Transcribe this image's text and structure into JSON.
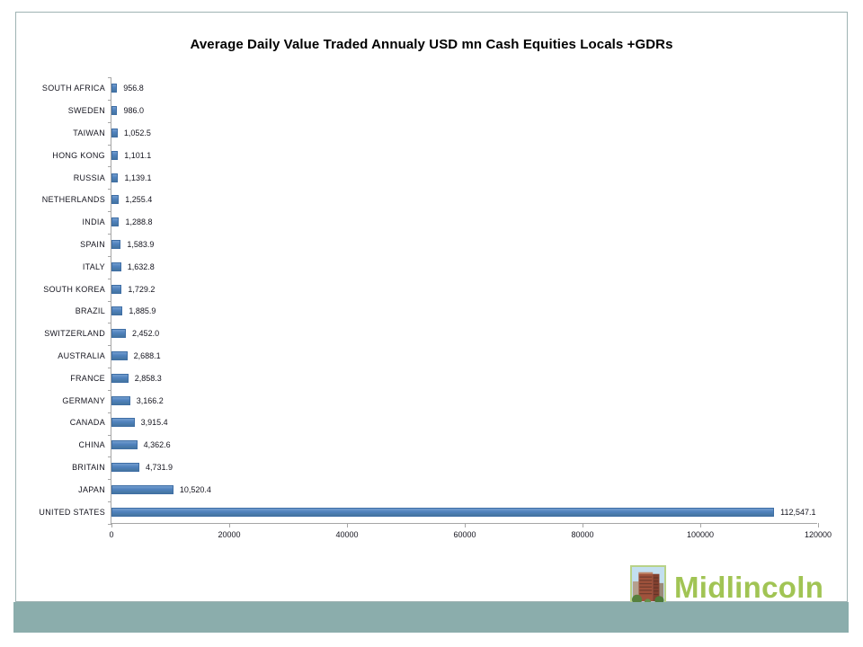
{
  "slide": {
    "title": "Average Daily Value Traded Annualy USD mn Cash Equities Locals +GDRs"
  },
  "chart_data": {
    "type": "bar",
    "orientation": "horizontal",
    "title": "Average Daily Value Traded Annualy USD mn Cash Equities Locals +GDRs",
    "categories": [
      "SOUTH AFRICA",
      "SWEDEN",
      "TAIWAN",
      "HONG KONG",
      "RUSSIA",
      "NETHERLANDS",
      "INDIA",
      "SPAIN",
      "ITALY",
      "SOUTH KOREA",
      "BRAZIL",
      "SWITZERLAND",
      "AUSTRALIA",
      "FRANCE",
      "GERMANY",
      "CANADA",
      "CHINA",
      "BRITAIN",
      "JAPAN",
      "UNITED STATES"
    ],
    "values": [
      956.8,
      986.0,
      1052.5,
      1101.1,
      1139.1,
      1255.4,
      1288.8,
      1583.9,
      1632.8,
      1729.2,
      1885.9,
      2452.0,
      2688.1,
      2858.3,
      3166.2,
      3915.4,
      4362.6,
      4731.9,
      10520.4,
      112547.1
    ],
    "value_labels": [
      "956.8",
      "986.0",
      "1,052.5",
      "1,101.1",
      "1,139.1",
      "1,255.4",
      "1,288.8",
      "1,583.9",
      "1,632.8",
      "1,729.2",
      "1,885.9",
      "2,452.0",
      "2,688.1",
      "2,858.3",
      "3,166.2",
      "3,915.4",
      "4,362.6",
      "4,731.9",
      "10,520.4",
      "112,547.1"
    ],
    "xlim": [
      0,
      120000
    ],
    "x_tick_labels": [
      "0",
      "20000",
      "40000",
      "60000",
      "80000",
      "100000",
      "120000"
    ],
    "grid": false,
    "legend": false,
    "bar_color": "#4f81bd"
  },
  "branding": {
    "logo_text": "Midlincoln",
    "logo_text_color": "#a1c454",
    "logo_icon": "building-photo-icon"
  },
  "footer_bar": {
    "color": "#8badac"
  }
}
